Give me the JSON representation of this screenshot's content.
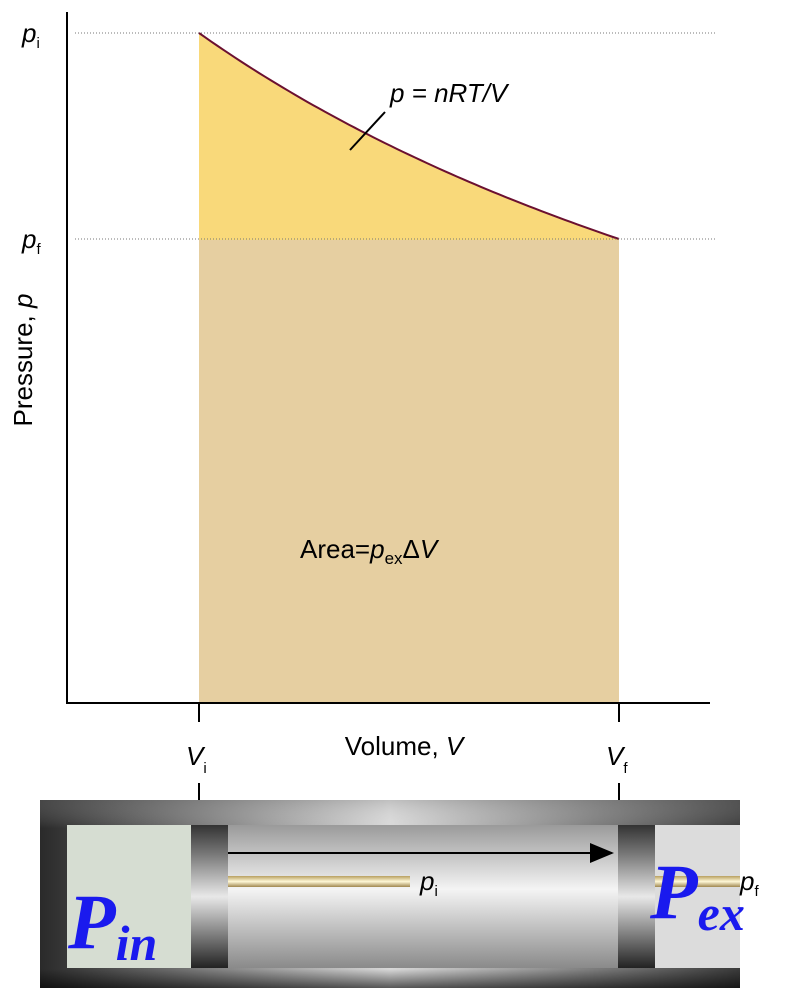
{
  "axes": {
    "y_label": {
      "text": "Pressure, ",
      "var": "p"
    },
    "x_label": {
      "text": "Volume, ",
      "var": "V"
    },
    "y_ticks": [
      {
        "var": "p",
        "sub": "i"
      },
      {
        "var": "p",
        "sub": "f"
      }
    ],
    "x_ticks": [
      {
        "var": "V",
        "sub": "i"
      },
      {
        "var": "V",
        "sub": "f"
      }
    ]
  },
  "curve_label": "p = nRT/V",
  "area_label": {
    "text": "Area=",
    "var": "p",
    "sub": "ex",
    "delta": "Δ",
    "var2": "V"
  },
  "cylinder": {
    "inner": {
      "main": "P",
      "sub": "in"
    },
    "outer": {
      "main": "P",
      "sub": "ex"
    },
    "rod_label_i": {
      "var": "p",
      "sub": "i"
    },
    "rod_label_f": {
      "var": "p",
      "sub": "f"
    }
  }
}
